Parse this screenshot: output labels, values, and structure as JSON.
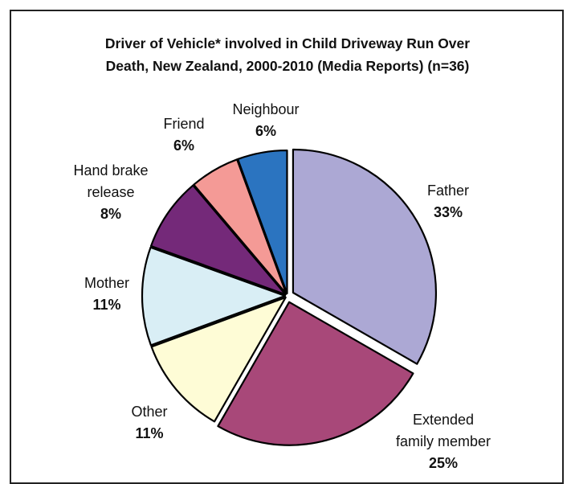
{
  "chart_data": {
    "type": "pie",
    "title_lines": [
      "Driver of Vehicle* involved in Child Driveway Run Over",
      "Death, New Zealand, 2000-2010 (Media Reports) (n=36)"
    ],
    "slices": [
      {
        "label_lines": [
          "Father"
        ],
        "percent_label": "33%",
        "value": 33.3,
        "color": "#aca8d4",
        "exploded": true
      },
      {
        "label_lines": [
          "Extended",
          "family member"
        ],
        "percent_label": "25%",
        "value": 25.0,
        "color": "#a84879",
        "exploded": true
      },
      {
        "label_lines": [
          "Other"
        ],
        "percent_label": "11%",
        "value": 11.1,
        "color": "#fefcd6"
      },
      {
        "label_lines": [
          "Mother"
        ],
        "percent_label": "11%",
        "value": 11.1,
        "color": "#d9eef5"
      },
      {
        "label_lines": [
          "Hand brake",
          "release"
        ],
        "percent_label": "8%",
        "value": 8.3,
        "color": "#742979"
      },
      {
        "label_lines": [
          "Friend"
        ],
        "percent_label": "6%",
        "value": 5.6,
        "color": "#f49a96"
      },
      {
        "label_lines": [
          "Neighbour"
        ],
        "percent_label": "6%",
        "value": 5.6,
        "color": "#2b74c0"
      }
    ]
  }
}
